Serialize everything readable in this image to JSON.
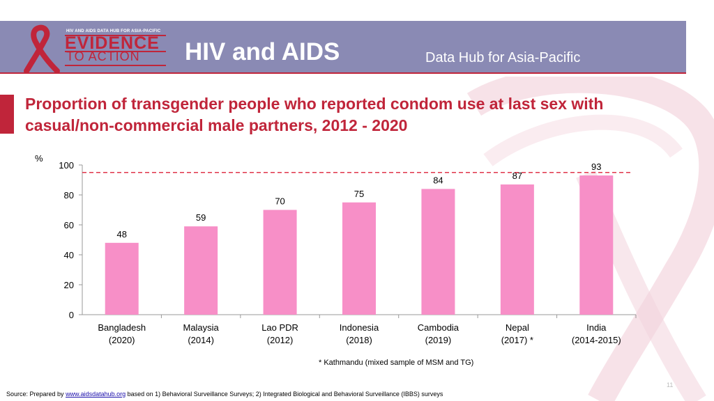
{
  "header": {
    "logo_small": "HIV AND AIDS DATA HUB FOR ASIA-PACIFIC",
    "logo_main": "EVIDENCE",
    "logo_sub": "TO ACTION",
    "title": "HIV and AIDS",
    "subtitle": "Data Hub for Asia-Pacific"
  },
  "colors": {
    "header_bg": "#8a8ab4",
    "accent": "#c0253a",
    "bar": "#f78fc7",
    "reference_line": "#e0344a"
  },
  "chart_data": {
    "type": "bar",
    "title": "Proportion of transgender people who reported condom use at last sex with casual/non-commercial male partners, 2012 - 2020",
    "ylabel": "%",
    "xlabel": "",
    "ylim": [
      0,
      100
    ],
    "yticks": [
      0,
      20,
      40,
      60,
      80,
      100
    ],
    "categories": [
      [
        "Bangladesh",
        "(2020)"
      ],
      [
        "Malaysia",
        "(2014)"
      ],
      [
        "Lao PDR",
        "(2012)"
      ],
      [
        "Indonesia",
        "(2018)"
      ],
      [
        "Cambodia",
        "(2019)"
      ],
      [
        "Nepal",
        "(2017) *"
      ],
      [
        "India",
        "(2014-2015)"
      ]
    ],
    "values": [
      48,
      59,
      70,
      75,
      84,
      87,
      93
    ],
    "reference_line": 95
  },
  "footnote": "* Kathmandu (mixed sample of MSM and TG)",
  "page_number": "11",
  "source": {
    "prefix": "Source: Prepared by ",
    "link": "www.aidsdatahub.org",
    "suffix": " based on 1) Behavioral Surveillance Surveys; 2) Integrated Biological and Behavioral Surveillance (IBBS) surveys"
  }
}
